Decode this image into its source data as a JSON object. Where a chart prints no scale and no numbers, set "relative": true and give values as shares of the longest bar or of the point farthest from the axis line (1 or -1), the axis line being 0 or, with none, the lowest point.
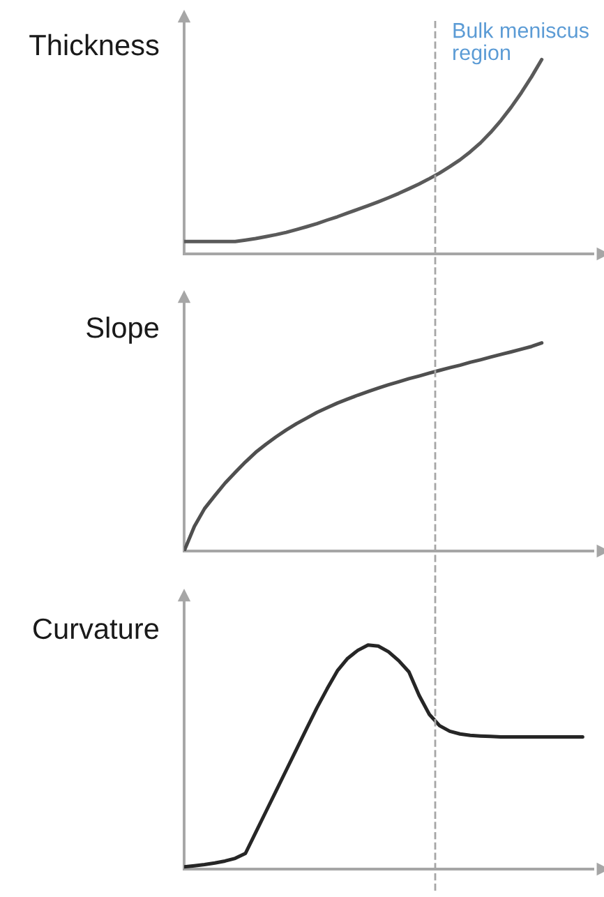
{
  "chart_data": [
    {
      "type": "line",
      "ylabel": "Thickness",
      "relative": true,
      "tick_labels": false,
      "line_style": "solid",
      "annotations": [
        "Bulk meniscus region"
      ],
      "categories": [
        null,
        null,
        null,
        null,
        null,
        null,
        null,
        null,
        null,
        null,
        null,
        null,
        null,
        null,
        null,
        null,
        null,
        null,
        null,
        null,
        null,
        null,
        null,
        null,
        null,
        null,
        null,
        null,
        null,
        null,
        null,
        null,
        null,
        null,
        null,
        null,
        null,
        null,
        null,
        null,
        null
      ],
      "series": [
        {
          "color": "#5a5a5a",
          "values": [
            0.064,
            0.064,
            0.064,
            0.064,
            0.064,
            0.064,
            0.071,
            0.079,
            0.089,
            0.099,
            0.111,
            0.125,
            0.14,
            0.156,
            0.174,
            0.191,
            0.21,
            0.229,
            0.248,
            0.268,
            0.289,
            0.311,
            0.335,
            0.36,
            0.387,
            0.416,
            0.449,
            0.484,
            0.525,
            0.571,
            0.625,
            0.686,
            0.754,
            0.829,
            0.911,
            1,
            null,
            null,
            null,
            null,
            null
          ]
        }
      ]
    },
    {
      "type": "line",
      "ylabel": "Slope",
      "relative": true,
      "tick_labels": false,
      "line_style": "solid",
      "categories": [
        null,
        null,
        null,
        null,
        null,
        null,
        null,
        null,
        null,
        null,
        null,
        null,
        null,
        null,
        null,
        null,
        null,
        null,
        null,
        null,
        null,
        null,
        null,
        null,
        null,
        null,
        null,
        null,
        null,
        null,
        null,
        null,
        null,
        null,
        null,
        null,
        null,
        null,
        null,
        null,
        null
      ],
      "series": [
        {
          "color": "#4f4f4f",
          "values": [
            0,
            0.118,
            0.204,
            0.266,
            0.326,
            0.378,
            0.428,
            0.474,
            0.513,
            0.549,
            0.582,
            0.612,
            0.639,
            0.666,
            0.689,
            0.711,
            0.73,
            0.749,
            0.766,
            0.783,
            0.799,
            0.813,
            0.828,
            0.841,
            0.855,
            0.868,
            0.881,
            0.893,
            0.907,
            0.919,
            0.932,
            0.945,
            0.957,
            0.97,
            0.983,
            1,
            null,
            null,
            null,
            null,
            null
          ]
        }
      ]
    },
    {
      "type": "line",
      "ylabel": "Curvature",
      "relative": true,
      "tick_labels": false,
      "line_style": "solid",
      "categories": [
        null,
        null,
        null,
        null,
        null,
        null,
        null,
        null,
        null,
        null,
        null,
        null,
        null,
        null,
        null,
        null,
        null,
        null,
        null,
        null,
        null,
        null,
        null,
        null,
        null,
        null,
        null,
        null,
        null,
        null,
        null,
        null,
        null,
        null,
        null,
        null,
        null,
        null,
        null,
        null,
        null
      ],
      "series": [
        {
          "color": "#262626",
          "values": [
            0.01,
            0.015,
            0.02,
            0.027,
            0.036,
            0.048,
            0.07,
            0.163,
            0.256,
            0.349,
            0.442,
            0.535,
            0.628,
            0.72,
            0.805,
            0.885,
            0.94,
            0.976,
            1,
            0.995,
            0.97,
            0.93,
            0.88,
            0.775,
            0.69,
            0.64,
            0.615,
            0.603,
            0.597,
            0.594,
            0.592,
            0.59,
            0.59,
            0.59,
            0.59,
            0.59,
            0.59,
            0.59,
            0.59,
            0.59,
            null
          ]
        }
      ]
    }
  ]
}
